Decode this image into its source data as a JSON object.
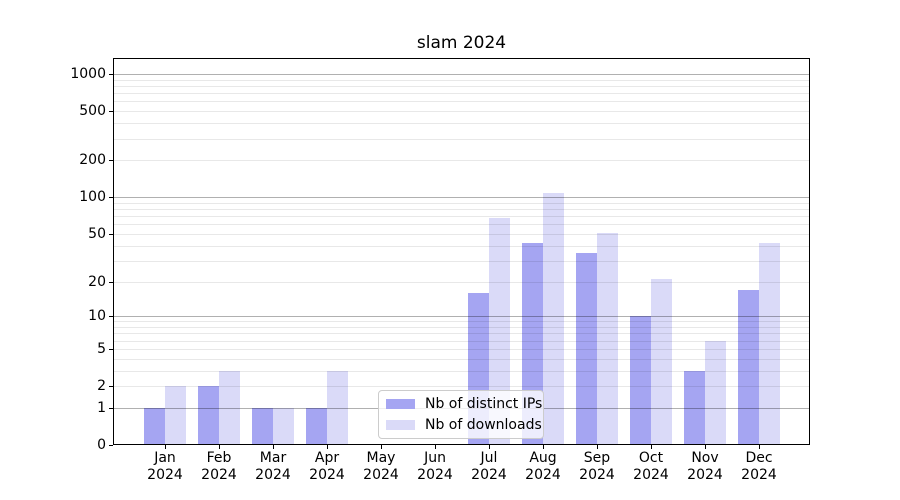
{
  "chart_data": {
    "type": "bar",
    "title": "slam 2024",
    "categories": [
      "Jan 2024",
      "Feb 2024",
      "Mar 2024",
      "Apr 2024",
      "May 2024",
      "Jun 2024",
      "Jul 2024",
      "Aug 2024",
      "Sep 2024",
      "Oct 2024",
      "Nov 2024",
      "Dec 2024"
    ],
    "series": [
      {
        "name": "Nb of distinct IPs",
        "color": "#a5a5f2",
        "values": [
          1,
          2,
          1,
          1,
          0,
          0,
          16,
          42,
          35,
          10,
          3,
          17
        ]
      },
      {
        "name": "Nb of downloads",
        "color": "#dadaf8",
        "values": [
          2,
          3,
          1,
          3,
          0,
          0,
          67,
          108,
          51,
          21,
          6,
          42
        ]
      }
    ],
    "xlabel": "",
    "ylabel": "",
    "yscale": "log1p",
    "yticks": [
      0,
      1,
      2,
      5,
      10,
      20,
      50,
      100,
      200,
      500,
      1000
    ],
    "ylim": [
      0,
      1350
    ],
    "grid": {
      "on": true,
      "drawn_above_bars": true,
      "major_lines": [
        1,
        10,
        100,
        1000
      ],
      "minor_decades": [
        1,
        10,
        100
      ],
      "minor_multipliers": [
        2,
        3,
        4,
        5,
        6,
        7,
        8,
        9
      ],
      "major_color": "#b0b0b0",
      "minor_color": "#e8e8e8"
    },
    "legend": {
      "position": "lower center, inside axes",
      "frame_border_color": "#cccccc"
    }
  }
}
